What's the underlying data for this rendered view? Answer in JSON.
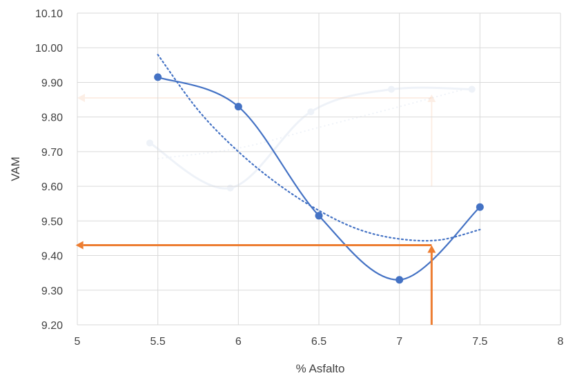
{
  "chart_data": {
    "type": "line",
    "xlabel": "% Asfalto",
    "ylabel": "VAM",
    "xlim": [
      5,
      8
    ],
    "ylim": [
      9.2,
      10.1
    ],
    "x_ticks": [
      "5",
      "5.5",
      "6",
      "6.5",
      "7",
      "7.5",
      "8"
    ],
    "y_ticks": [
      "9.20",
      "9.30",
      "9.40",
      "9.50",
      "9.60",
      "9.70",
      "9.80",
      "9.90",
      "10.00",
      "10.10"
    ],
    "grid": true,
    "colors": {
      "series": "#4472C4",
      "trend": "#4472C4",
      "marker": "#ED7D31",
      "grid": "#D9D9D9",
      "faded_background": "#EEF2F8"
    },
    "series": [
      {
        "x": [
          5.5,
          6,
          6.5,
          7,
          7.5
        ],
        "y": [
          9.915,
          9.83,
          9.515,
          9.33,
          9.54
        ],
        "smooth": true
      }
    ],
    "trendline": {
      "style": "dotted",
      "x": [
        5.5,
        5.75,
        6,
        6.25,
        6.5,
        6.75,
        7,
        7.25,
        7.5
      ],
      "y": [
        9.98,
        9.82,
        9.7,
        9.605,
        9.53,
        9.475,
        9.448,
        9.445,
        9.475
      ]
    },
    "annotations": [
      {
        "type": "arrow",
        "from": [
          7.2,
          9.2
        ],
        "to": [
          7.2,
          9.43
        ]
      },
      {
        "type": "arrow",
        "from": [
          7.2,
          9.43
        ],
        "to": [
          4.99,
          9.43
        ]
      }
    ],
    "background_ghost": {
      "series": {
        "x": [
          5.45,
          5.95,
          6.45,
          6.95,
          7.45
        ],
        "y": [
          9.725,
          9.595,
          9.815,
          9.88,
          9.88
        ]
      },
      "trendline": {
        "x": [
          5.5,
          6,
          6.5,
          7,
          7.4
        ],
        "y": [
          9.68,
          9.71,
          9.77,
          9.83,
          9.88
        ]
      },
      "arrows": [
        {
          "from": [
            7.2,
            9.6
          ],
          "to": [
            7.2,
            9.865
          ]
        },
        {
          "from": [
            7.2,
            9.855
          ],
          "to": [
            5.0,
            9.855
          ]
        }
      ]
    }
  }
}
